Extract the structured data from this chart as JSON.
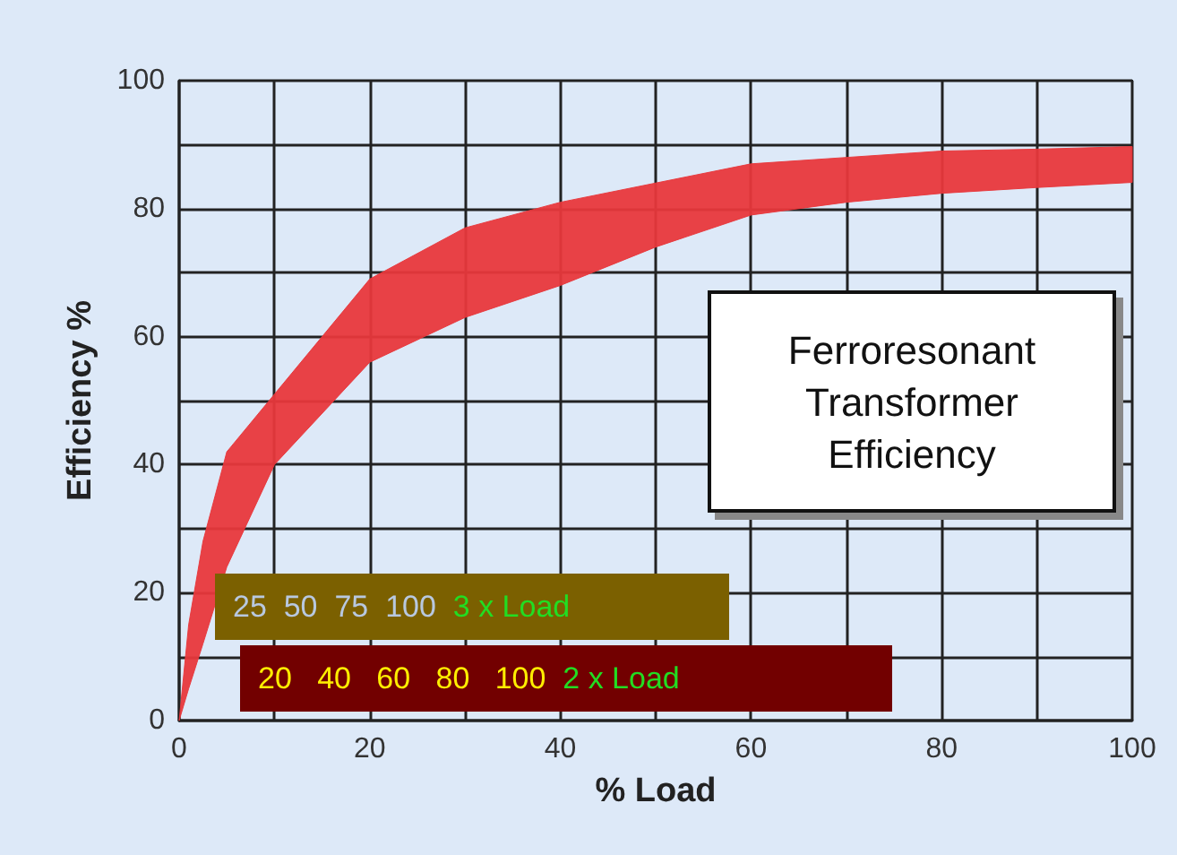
{
  "chart_data": {
    "type": "area",
    "xlabel": "% Load",
    "ylabel": "Efficiency %",
    "x": [
      0,
      1,
      2.5,
      5,
      10,
      20,
      30,
      40,
      50,
      60,
      70,
      80,
      90,
      100
    ],
    "series": [
      {
        "color": "#e8383c",
        "values": [
          null,
          null,
          null,
          null,
          null,
          null,
          null,
          null,
          null,
          null,
          null,
          null,
          null,
          null
        ],
        "lower": [
          0,
          5,
          12,
          24,
          40,
          56,
          63,
          68,
          74,
          79,
          81,
          82.4,
          83.3,
          84.1
        ],
        "upper": [
          0,
          15,
          28,
          42,
          51,
          69,
          77,
          81,
          84,
          87,
          88,
          89,
          89.3,
          89.7
        ]
      }
    ],
    "xlim": [
      0,
      100
    ],
    "ylim": [
      0,
      100
    ],
    "xticks": [
      0,
      {
        "value": 10,
        "label": null
      },
      20,
      {
        "value": 30,
        "label": null
      },
      40,
      {
        "value": 50,
        "label": null
      },
      60,
      {
        "value": 70,
        "label": null
      },
      80,
      {
        "value": 90,
        "label": null
      },
      100
    ],
    "yticks": [
      0,
      {
        "value": 10,
        "label": null
      },
      20,
      {
        "value": 30,
        "label": null
      },
      40,
      {
        "value": 50,
        "label": null
      },
      60,
      {
        "value": 70,
        "label": null
      },
      80,
      {
        "value": 90,
        "label": null
      },
      100
    ],
    "grid": true,
    "annotations": [
      "Ferroresonant Transformer Efficiency",
      "25  50  75  100",
      "3 x Load",
      "20   40   60   80   100",
      "2 x Load"
    ]
  }
}
